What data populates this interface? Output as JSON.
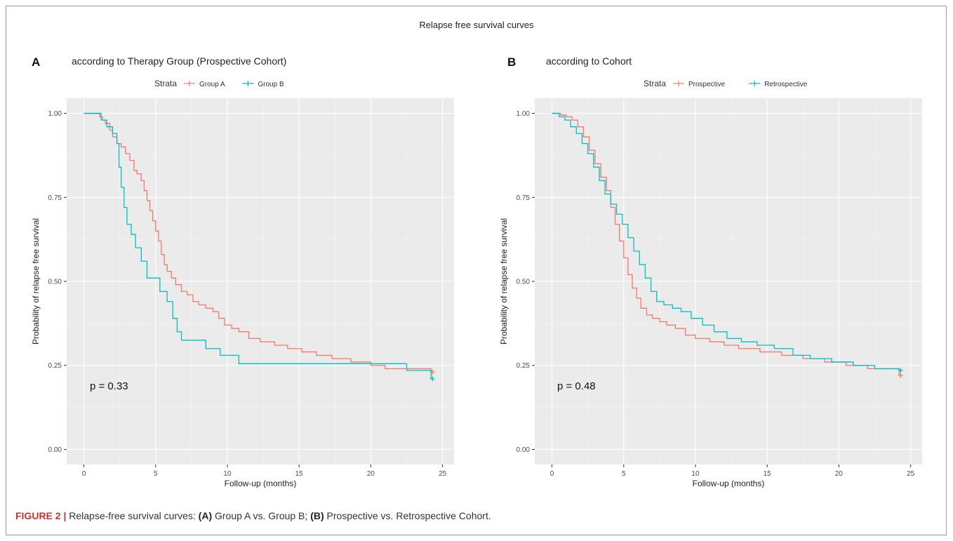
{
  "figure": {
    "super_title": "Relapse free survival curves",
    "caption_label": "FIGURE 2 |",
    "caption_parts": [
      {
        "text": " Relapse-free survival curves: ",
        "bold": false
      },
      {
        "text": "(A)",
        "bold": true
      },
      {
        "text": " Group A vs. Group B; ",
        "bold": false
      },
      {
        "text": "(B)",
        "bold": true
      },
      {
        "text": " Prospective vs. Retrospective Cohort.",
        "bold": false
      }
    ]
  },
  "colors": {
    "red": "#F8766D",
    "teal": "#00BFC4",
    "panel_bg": "#EBEBEB",
    "grid": "#FFFFFF"
  },
  "chart_data": [
    {
      "type": "line",
      "step": true,
      "panel_letter": "A",
      "title": "according to Therapy Group (Prospective Cohort)",
      "xlabel": "Follow-up (months)",
      "ylabel": "Probability of relapse free survival",
      "xlim": [
        -1.2,
        25.8
      ],
      "ylim": [
        -0.045,
        1.045
      ],
      "xticks": [
        0,
        5,
        10,
        15,
        20,
        25
      ],
      "yticks": [
        0.0,
        0.25,
        0.5,
        0.75,
        1.0
      ],
      "ytick_labels": [
        "0.00",
        "0.25",
        "0.50",
        "0.75",
        "1.00"
      ],
      "grid": true,
      "legend_title": "Strata",
      "legend_position": "top",
      "annotation": "p = 0.33",
      "series": [
        {
          "name": "Group A",
          "color": "#F8766D",
          "x": [
            0,
            1.1,
            1.3,
            1.5,
            1.8,
            2.0,
            2.3,
            2.6,
            2.9,
            3.2,
            3.5,
            3.7,
            4.0,
            4.2,
            4.4,
            4.6,
            4.8,
            5.0,
            5.2,
            5.4,
            5.6,
            5.8,
            6.1,
            6.4,
            6.8,
            7.2,
            7.6,
            8.0,
            8.5,
            9.0,
            9.4,
            9.8,
            10.3,
            10.8,
            11.5,
            12.3,
            13.3,
            14.2,
            15.2,
            16.2,
            17.3,
            18.6,
            20.0,
            21.0,
            24.2
          ],
          "y": [
            1.0,
            0.99,
            0.98,
            0.97,
            0.95,
            0.93,
            0.91,
            0.9,
            0.88,
            0.86,
            0.83,
            0.82,
            0.8,
            0.77,
            0.74,
            0.71,
            0.68,
            0.65,
            0.62,
            0.58,
            0.55,
            0.53,
            0.51,
            0.49,
            0.47,
            0.46,
            0.44,
            0.43,
            0.42,
            0.41,
            0.39,
            0.37,
            0.36,
            0.35,
            0.33,
            0.32,
            0.31,
            0.3,
            0.29,
            0.28,
            0.27,
            0.26,
            0.25,
            0.24,
            0.23
          ],
          "censor": {
            "x": 24.3,
            "y": 0.23
          }
        },
        {
          "name": "Group B",
          "color": "#00BFC4",
          "x": [
            0,
            1.2,
            1.6,
            2.0,
            2.3,
            2.45,
            2.6,
            2.8,
            3.0,
            3.3,
            3.6,
            4.0,
            4.4,
            4.7,
            5.3,
            5.8,
            6.2,
            6.5,
            6.8,
            8.5,
            9.5,
            10.8,
            22.5,
            24.2
          ],
          "y": [
            1.0,
            0.98,
            0.96,
            0.94,
            0.91,
            0.84,
            0.78,
            0.72,
            0.67,
            0.64,
            0.6,
            0.56,
            0.51,
            0.51,
            0.47,
            0.44,
            0.39,
            0.35,
            0.325,
            0.3,
            0.28,
            0.255,
            0.235,
            0.21
          ],
          "censor": {
            "x": 24.3,
            "y": 0.21
          }
        }
      ]
    },
    {
      "type": "line",
      "step": true,
      "panel_letter": "B",
      "title": "according to Cohort",
      "xlabel": "Follow-up (months)",
      "ylabel": "Probability of relapse free survival",
      "xlim": [
        -1.2,
        25.8
      ],
      "ylim": [
        -0.045,
        1.045
      ],
      "xticks": [
        0,
        5,
        10,
        15,
        20,
        25
      ],
      "yticks": [
        0.0,
        0.25,
        0.5,
        0.75,
        1.0
      ],
      "ytick_labels": [
        "0.00",
        "0.25",
        "0.50",
        "0.75",
        "1.00"
      ],
      "grid": true,
      "legend_title": "Strata",
      "legend_position": "top",
      "annotation": "p = 0.48",
      "series": [
        {
          "name": "Prospective",
          "color": "#F8766D",
          "x": [
            0,
            0.6,
            1.0,
            1.4,
            1.8,
            2.2,
            2.6,
            3.0,
            3.4,
            3.8,
            4.1,
            4.4,
            4.7,
            5.0,
            5.3,
            5.6,
            5.9,
            6.2,
            6.6,
            7.0,
            7.5,
            8.0,
            8.6,
            9.3,
            10.0,
            11.0,
            12.0,
            13.0,
            14.5,
            16.0,
            17.5,
            19.0,
            20.5,
            22.0,
            24.2
          ],
          "y": [
            1.0,
            0.995,
            0.99,
            0.98,
            0.96,
            0.93,
            0.89,
            0.85,
            0.81,
            0.77,
            0.72,
            0.67,
            0.62,
            0.57,
            0.52,
            0.48,
            0.45,
            0.42,
            0.4,
            0.39,
            0.38,
            0.37,
            0.36,
            0.34,
            0.33,
            0.32,
            0.31,
            0.3,
            0.29,
            0.28,
            0.27,
            0.26,
            0.25,
            0.24,
            0.22
          ],
          "censor": {
            "x": 24.3,
            "y": 0.22
          }
        },
        {
          "name": "Retrospective",
          "color": "#00BFC4",
          "x": [
            0,
            0.5,
            0.9,
            1.3,
            1.7,
            2.1,
            2.5,
            2.9,
            3.3,
            3.7,
            4.1,
            4.5,
            4.9,
            5.3,
            5.7,
            6.1,
            6.5,
            6.9,
            7.3,
            7.8,
            8.4,
            9.0,
            9.7,
            10.5,
            11.3,
            12.2,
            13.2,
            14.3,
            15.5,
            16.8,
            18.0,
            19.5,
            21.0,
            22.5,
            24.2
          ],
          "y": [
            1.0,
            0.99,
            0.98,
            0.96,
            0.94,
            0.91,
            0.88,
            0.84,
            0.8,
            0.76,
            0.73,
            0.7,
            0.67,
            0.63,
            0.59,
            0.55,
            0.51,
            0.47,
            0.44,
            0.43,
            0.42,
            0.41,
            0.39,
            0.37,
            0.35,
            0.33,
            0.32,
            0.31,
            0.3,
            0.28,
            0.27,
            0.26,
            0.25,
            0.24,
            0.235
          ],
          "censor": {
            "x": 24.3,
            "y": 0.235
          }
        }
      ]
    }
  ]
}
